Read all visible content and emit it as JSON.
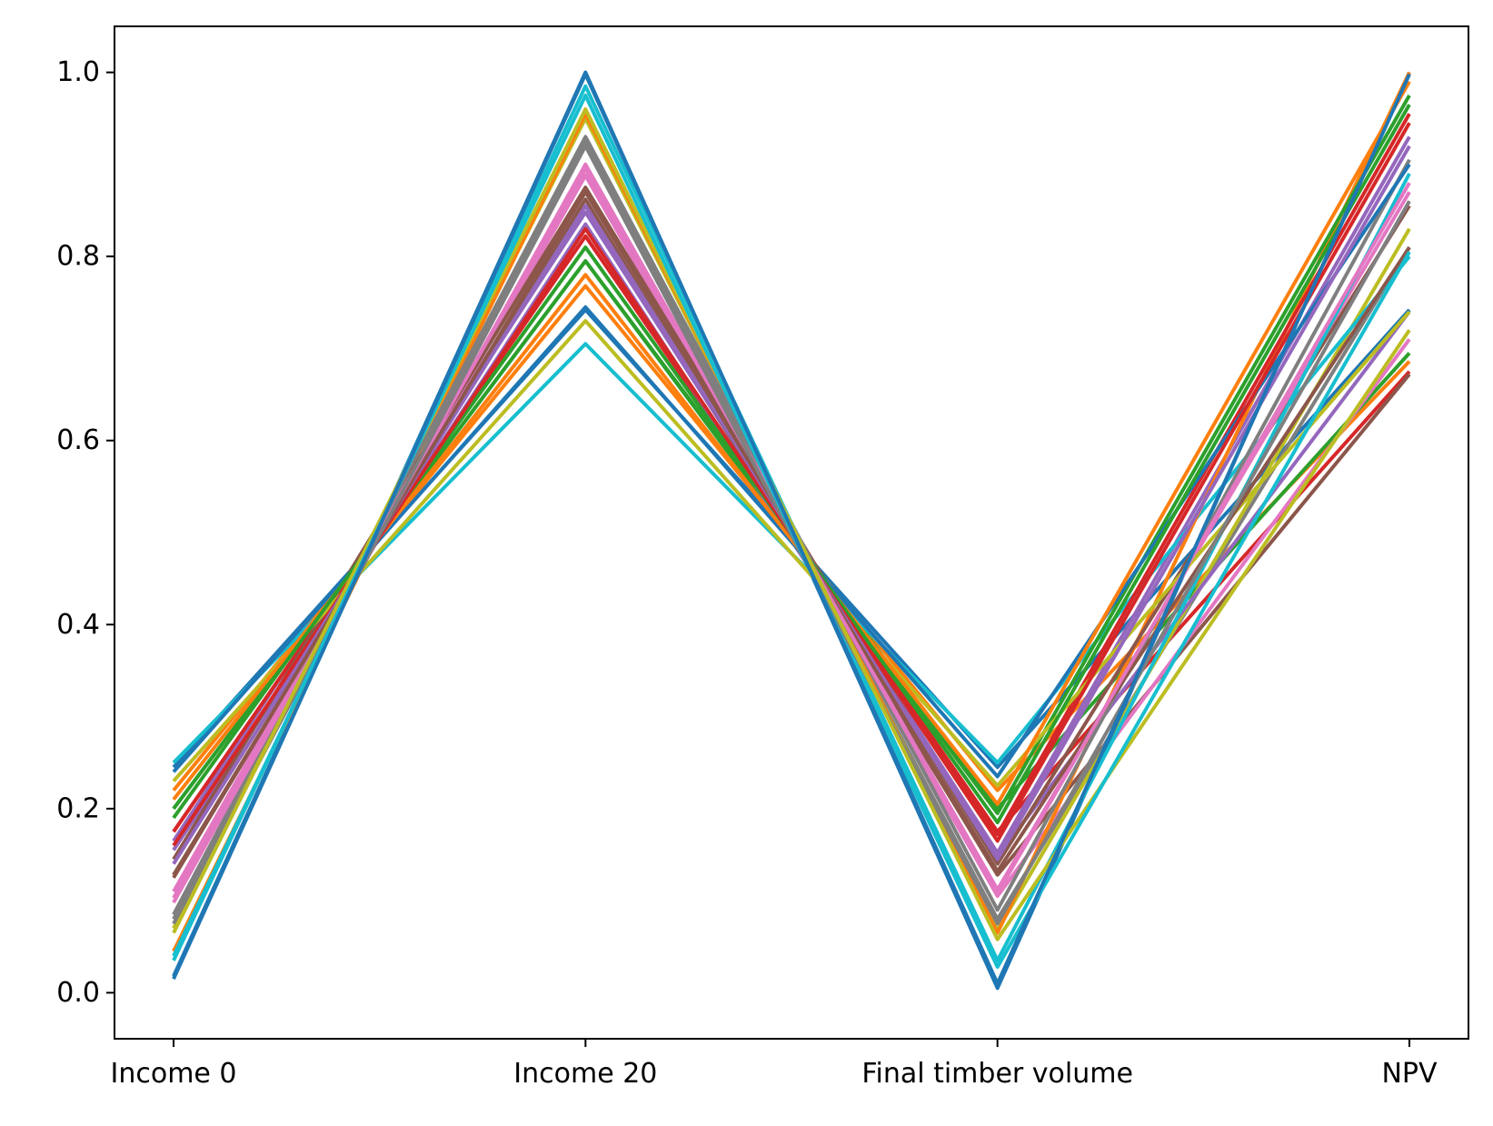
{
  "chart_data": {
    "type": "line",
    "title": "",
    "xlabel": "",
    "ylabel": "",
    "categories": [
      "Income 0",
      "Income 20",
      "Final timber volume",
      "NPV"
    ],
    "ylim": [
      -0.05,
      1.05
    ],
    "yticks": [
      "0.0",
      "0.2",
      "0.4",
      "0.6",
      "0.8",
      "1.0"
    ],
    "grid": false,
    "legend": "none",
    "palette": [
      "#1f77b4",
      "#ff7f0e",
      "#2ca02c",
      "#d62728",
      "#9467bd",
      "#8c564b",
      "#e377c2",
      "#7f7f7f",
      "#bcbd22",
      "#17becf"
    ],
    "series": [
      {
        "values": [
          0.245,
          0.742,
          0.245,
          0.742
        ]
      },
      {
        "values": [
          0.22,
          0.768,
          0.22,
          0.686
        ]
      },
      {
        "values": [
          0.2,
          0.795,
          0.2,
          0.695
        ]
      },
      {
        "values": [
          0.175,
          0.822,
          0.175,
          0.675
        ]
      },
      {
        "values": [
          0.165,
          0.848,
          0.152,
          0.93
        ]
      },
      {
        "values": [
          0.128,
          0.862,
          0.128,
          0.672
        ]
      },
      {
        "values": [
          0.103,
          0.888,
          0.105,
          0.71
        ]
      },
      {
        "values": [
          0.08,
          0.925,
          0.08,
          0.81
        ]
      },
      {
        "values": [
          0.07,
          0.95,
          0.068,
          0.83
        ]
      },
      {
        "values": [
          0.25,
          0.705,
          0.25,
          0.8
        ]
      },
      {
        "values": [
          0.018,
          1.0,
          0.005,
          1.0
        ]
      },
      {
        "values": [
          0.045,
          0.955,
          0.065,
          1.0
        ]
      },
      {
        "values": [
          0.2,
          0.795,
          0.195,
          0.975
        ]
      },
      {
        "values": [
          0.175,
          0.822,
          0.172,
          0.955
        ]
      },
      {
        "values": [
          0.155,
          0.835,
          0.148,
          0.74
        ]
      },
      {
        "values": [
          0.145,
          0.875,
          0.14,
          0.855
        ]
      },
      {
        "values": [
          0.11,
          0.895,
          0.112,
          0.87
        ]
      },
      {
        "values": [
          0.085,
          0.93,
          0.09,
          0.905
        ]
      },
      {
        "values": [
          0.23,
          0.73,
          0.225,
          0.74
        ]
      },
      {
        "values": [
          0.035,
          0.985,
          0.035,
          0.89
        ]
      },
      {
        "values": [
          0.24,
          0.745,
          0.235,
          0.9
        ]
      },
      {
        "values": [
          0.21,
          0.78,
          0.205,
          0.99
        ]
      },
      {
        "values": [
          0.19,
          0.81,
          0.185,
          0.965
        ]
      },
      {
        "values": [
          0.16,
          0.83,
          0.165,
          0.945
        ]
      },
      {
        "values": [
          0.14,
          0.855,
          0.145,
          0.92
        ]
      },
      {
        "values": [
          0.125,
          0.87,
          0.132,
          0.81
        ]
      },
      {
        "values": [
          0.098,
          0.9,
          0.108,
          0.88
        ]
      },
      {
        "values": [
          0.075,
          0.92,
          0.075,
          0.86
        ]
      },
      {
        "values": [
          0.065,
          0.96,
          0.058,
          0.72
        ]
      },
      {
        "values": [
          0.04,
          0.975,
          0.028,
          0.805
        ]
      },
      {
        "values": [
          0.015,
          0.998,
          0.01,
          0.998
        ]
      }
    ]
  }
}
